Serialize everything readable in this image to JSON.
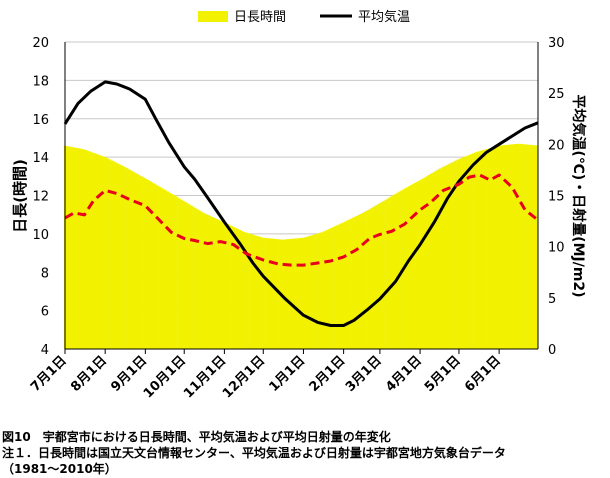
{
  "legend": {
    "daylength": "日長時間",
    "temperature": "平均気温"
  },
  "captions": {
    "line1": "図10　宇都宮市における日長時間、平均気温および平均日射量の年変化",
    "line2": "注１．日長時間は国立天文台情報センター、平均気温および日射量は宇都宮地方気象台データ",
    "line3": "（1981～2010年）"
  },
  "chart_data": {
    "type": "area",
    "ylabel": "日長(時間)",
    "y2label": "平均気温(℃)・日射量(MJ/m2)",
    "ylim": [
      4,
      20
    ],
    "yticks": [
      4,
      6,
      8,
      10,
      12,
      14,
      16,
      18,
      20
    ],
    "y2lim": [
      0,
      30
    ],
    "y2ticks": [
      0,
      5,
      10,
      15,
      20,
      25,
      30
    ],
    "grid": true,
    "legend_position": "top",
    "categories": [
      "7月1日",
      "8月1日",
      "9月1日",
      "10月1日",
      "11月1日",
      "12月1日",
      "1月1日",
      "2月1日",
      "3月1日",
      "4月1日",
      "5月1日",
      "6月1日"
    ],
    "x_range": [
      0,
      365
    ],
    "x_ticks": [
      0,
      31,
      62,
      92,
      123,
      153,
      184,
      215,
      243,
      274,
      304,
      335
    ],
    "colors": {
      "daylength": "#f2f200",
      "temperature": "#000000",
      "radiation": "#e8001c",
      "grid": "#c8c8c8"
    },
    "series": [
      {
        "name": "日長時間",
        "kind": "area",
        "axis": "left",
        "x": [
          0,
          15,
          31,
          46,
          62,
          77,
          92,
          107,
          123,
          138,
          153,
          168,
          184,
          199,
          215,
          230,
          243,
          258,
          274,
          289,
          304,
          319,
          335,
          350,
          365
        ],
        "values": [
          14.6,
          14.4,
          14.0,
          13.5,
          12.9,
          12.3,
          11.7,
          11.1,
          10.6,
          10.1,
          9.8,
          9.7,
          9.8,
          10.1,
          10.6,
          11.1,
          11.6,
          12.2,
          12.8,
          13.4,
          13.9,
          14.3,
          14.6,
          14.7,
          14.6
        ]
      },
      {
        "name": "平均気温",
        "kind": "line",
        "axis": "right",
        "x": [
          0,
          10,
          20,
          31,
          40,
          50,
          62,
          70,
          80,
          92,
          100,
          110,
          123,
          135,
          145,
          153,
          160,
          170,
          184,
          195,
          205,
          215,
          223,
          233,
          243,
          255,
          265,
          274,
          285,
          295,
          304,
          315,
          325,
          335,
          345,
          355,
          365
        ],
        "values": [
          22.0,
          24.0,
          25.2,
          26.1,
          25.9,
          25.4,
          24.4,
          22.5,
          20.2,
          17.8,
          16.6,
          14.8,
          12.4,
          10.3,
          8.4,
          7.1,
          6.2,
          4.9,
          3.3,
          2.6,
          2.3,
          2.3,
          2.8,
          3.8,
          4.9,
          6.6,
          8.6,
          10.2,
          12.4,
          14.7,
          16.4,
          18.0,
          19.2,
          20.0,
          20.8,
          21.6,
          22.1
        ]
      },
      {
        "name": "平均日射量",
        "kind": "dashed-line",
        "axis": "right",
        "x": [
          0,
          7,
          15,
          22,
          31,
          40,
          50,
          62,
          72,
          82,
          92,
          100,
          110,
          120,
          130,
          140,
          153,
          165,
          175,
          184,
          195,
          205,
          215,
          225,
          235,
          243,
          252,
          262,
          274,
          282,
          292,
          304,
          312,
          320,
          328,
          335,
          345,
          355,
          365
        ],
        "values": [
          12.8,
          13.3,
          13.1,
          14.5,
          15.5,
          15.2,
          14.6,
          14.0,
          12.7,
          11.4,
          10.8,
          10.6,
          10.3,
          10.5,
          10.2,
          9.3,
          8.7,
          8.3,
          8.2,
          8.2,
          8.4,
          8.6,
          9.0,
          9.7,
          10.8,
          11.2,
          11.5,
          12.2,
          13.6,
          14.3,
          15.5,
          16.1,
          16.8,
          17.0,
          16.5,
          17.0,
          15.8,
          13.6,
          12.6
        ]
      }
    ]
  }
}
